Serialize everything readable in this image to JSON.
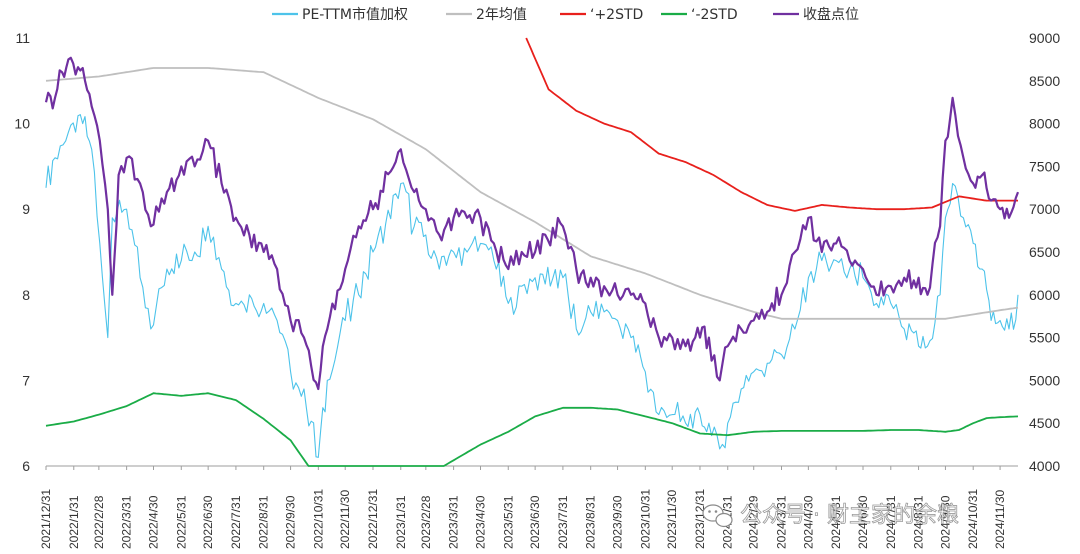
{
  "chart_data": {
    "type": "line",
    "legend_position": "top",
    "grid": false,
    "left_axis": {
      "ylim": [
        6,
        11
      ],
      "ticks": [
        "6",
        "7",
        "8",
        "9",
        "10",
        "11"
      ]
    },
    "right_axis": {
      "ylim": [
        4000,
        9000
      ],
      "ticks": [
        "4000",
        "4500",
        "5000",
        "5500",
        "6000",
        "6500",
        "7000",
        "7500",
        "8000",
        "8500",
        "9000"
      ]
    },
    "x_ticks": [
      "2021/12/31",
      "2022/1/31",
      "2022/2/28",
      "2022/3/31",
      "2022/4/30",
      "2022/5/31",
      "2022/6/30",
      "2022/7/31",
      "2022/8/31",
      "2022/9/30",
      "2022/10/31",
      "2022/11/30",
      "2022/12/31",
      "2023/1/31",
      "2023/2/28",
      "2023/3/31",
      "2023/4/30",
      "2023/5/31",
      "2023/6/30",
      "2023/7/31",
      "2023/8/31",
      "2023/9/30",
      "2023/10/31",
      "2023/11/30",
      "2023/12/31",
      "2024/1/31",
      "2024/2/29",
      "2024/3/31",
      "2024/4/30",
      "2024/5/31",
      "2024/6/30",
      "2024/7/31",
      "2024/8/31",
      "2024/9/30",
      "2024/10/31",
      "2024/11/30"
    ],
    "series": [
      {
        "name": "PE-TTM市值加权",
        "axis": "left",
        "color": "#4dc3ea",
        "points": [
          [
            "2021/12/31",
            9.25
          ],
          [
            "2022/1/10",
            9.6
          ],
          [
            "2022/1/25",
            9.9
          ],
          [
            "2022/2/10",
            10.0
          ],
          [
            "2022/2/20",
            9.7
          ],
          [
            "2022/3/1",
            8.6
          ],
          [
            "2022/3/10",
            7.5
          ],
          [
            "2022/3/15",
            8.9
          ],
          [
            "2022/3/31",
            9.0
          ],
          [
            "2022/4/15",
            8.2
          ],
          [
            "2022/4/27",
            7.6
          ],
          [
            "2022/5/15",
            8.3
          ],
          [
            "2022/5/31",
            8.4
          ],
          [
            "2022/6/15",
            8.5
          ],
          [
            "2022/6/30",
            8.8
          ],
          [
            "2022/7/15",
            8.3
          ],
          [
            "2022/7/31",
            7.9
          ],
          [
            "2022/8/15",
            8.0
          ],
          [
            "2022/8/31",
            7.9
          ],
          [
            "2022/9/15",
            7.7
          ],
          [
            "2022/9/30",
            7.1
          ],
          [
            "2022/10/15",
            6.9
          ],
          [
            "2022/10/31",
            6.1
          ],
          [
            "2022/11/10",
            7.0
          ],
          [
            "2022/11/30",
            7.7
          ],
          [
            "2022/12/15",
            8.0
          ],
          [
            "2022/12/31",
            8.5
          ],
          [
            "2023/1/31",
            9.3
          ],
          [
            "2023/2/15",
            8.8
          ],
          [
            "2023/2/28",
            8.7
          ],
          [
            "2023/3/15",
            8.3
          ],
          [
            "2023/3/31",
            8.5
          ],
          [
            "2023/4/15",
            8.5
          ],
          [
            "2023/4/30",
            8.6
          ],
          [
            "2023/5/15",
            8.4
          ],
          [
            "2023/5/31",
            7.9
          ],
          [
            "2023/6/15",
            8.1
          ],
          [
            "2023/6/30",
            8.2
          ],
          [
            "2023/7/31",
            8.2
          ],
          [
            "2023/8/15",
            7.6
          ],
          [
            "2023/8/31",
            7.8
          ],
          [
            "2023/9/15",
            7.8
          ],
          [
            "2023/9/30",
            7.7
          ],
          [
            "2023/10/15",
            7.5
          ],
          [
            "2023/10/31",
            7.1
          ],
          [
            "2023/11/15",
            6.6
          ],
          [
            "2023/11/30",
            6.6
          ],
          [
            "2023/12/15",
            6.5
          ],
          [
            "2023/12/31",
            6.6
          ],
          [
            "2024/1/10",
            6.5
          ],
          [
            "2024/1/22",
            6.2
          ],
          [
            "2024/1/31",
            6.5
          ],
          [
            "2024/2/15",
            6.9
          ],
          [
            "2024/2/29",
            7.1
          ],
          [
            "2024/3/15",
            7.2
          ],
          [
            "2024/3/31",
            7.3
          ],
          [
            "2024/4/15",
            7.6
          ],
          [
            "2024/4/30",
            8.2
          ],
          [
            "2024/5/15",
            8.4
          ],
          [
            "2024/5/31",
            8.4
          ],
          [
            "2024/6/15",
            8.3
          ],
          [
            "2024/6/30",
            8.2
          ],
          [
            "2024/7/15",
            7.9
          ],
          [
            "2024/7/31",
            7.9
          ],
          [
            "2024/8/15",
            7.6
          ],
          [
            "2024/8/31",
            7.4
          ],
          [
            "2024/9/10",
            7.4
          ],
          [
            "2024/9/24",
            8.0
          ],
          [
            "2024/9/30",
            8.9
          ],
          [
            "2024/10/8",
            9.3
          ],
          [
            "2024/10/20",
            8.9
          ],
          [
            "2024/10/31",
            8.6
          ],
          [
            "2024/11/10",
            8.3
          ],
          [
            "2024/11/20",
            7.7
          ],
          [
            "2024/11/30",
            7.7
          ],
          [
            "2024/12/10",
            7.6
          ],
          [
            "2024/12/20",
            8.0
          ]
        ]
      },
      {
        "name": "2年均值",
        "axis": "left",
        "color": "#bfbfbf",
        "points": [
          [
            "2021/12/31",
            10.5
          ],
          [
            "2022/2/28",
            10.55
          ],
          [
            "2022/4/30",
            10.65
          ],
          [
            "2022/6/30",
            10.65
          ],
          [
            "2022/8/31",
            10.6
          ],
          [
            "2022/10/31",
            10.3
          ],
          [
            "2022/12/31",
            10.05
          ],
          [
            "2023/2/28",
            9.7
          ],
          [
            "2023/4/30",
            9.2
          ],
          [
            "2023/6/30",
            8.85
          ],
          [
            "2023/8/31",
            8.45
          ],
          [
            "2023/10/31",
            8.25
          ],
          [
            "2023/12/31",
            8.0
          ],
          [
            "2024/2/29",
            7.8
          ],
          [
            "2024/3/31",
            7.72
          ],
          [
            "2024/5/31",
            7.72
          ],
          [
            "2024/7/31",
            7.72
          ],
          [
            "2024/9/30",
            7.72
          ],
          [
            "2024/11/30",
            7.82
          ],
          [
            "2024/12/20",
            7.85
          ]
        ]
      },
      {
        "name": "‘+2STD",
        "axis": "left",
        "color": "#e8201c",
        "points": [
          [
            "2023/6/20",
            11.0
          ],
          [
            "2023/7/15",
            10.4
          ],
          [
            "2023/8/15",
            10.15
          ],
          [
            "2023/9/15",
            10.0
          ],
          [
            "2023/10/15",
            9.9
          ],
          [
            "2023/11/15",
            9.65
          ],
          [
            "2023/12/15",
            9.55
          ],
          [
            "2024/1/15",
            9.4
          ],
          [
            "2024/2/15",
            9.2
          ],
          [
            "2024/3/15",
            9.05
          ],
          [
            "2024/4/15",
            8.98
          ],
          [
            "2024/5/15",
            9.05
          ],
          [
            "2024/6/15",
            9.02
          ],
          [
            "2024/7/15",
            9.0
          ],
          [
            "2024/8/15",
            9.0
          ],
          [
            "2024/9/15",
            9.02
          ],
          [
            "2024/10/15",
            9.15
          ],
          [
            "2024/11/15",
            9.1
          ],
          [
            "2024/12/20",
            9.1
          ]
        ]
      },
      {
        "name": "‘-2STD",
        "axis": "left",
        "color": "#1aac47",
        "points": [
          [
            "2021/12/31",
            6.47
          ],
          [
            "2022/1/31",
            6.52
          ],
          [
            "2022/2/28",
            6.6
          ],
          [
            "2022/3/31",
            6.7
          ],
          [
            "2022/4/30",
            6.85
          ],
          [
            "2022/5/31",
            6.82
          ],
          [
            "2022/6/30",
            6.85
          ],
          [
            "2022/7/31",
            6.77
          ],
          [
            "2022/8/31",
            6.55
          ],
          [
            "2022/9/30",
            6.3
          ],
          [
            "2022/10/20",
            6.0
          ],
          [
            "2023/3/20",
            6.0
          ],
          [
            "2023/4/30",
            6.25
          ],
          [
            "2023/5/31",
            6.4
          ],
          [
            "2023/6/30",
            6.58
          ],
          [
            "2023/7/31",
            6.68
          ],
          [
            "2023/8/31",
            6.68
          ],
          [
            "2023/9/30",
            6.66
          ],
          [
            "2023/10/31",
            6.58
          ],
          [
            "2023/11/30",
            6.5
          ],
          [
            "2023/12/31",
            6.38
          ],
          [
            "2024/1/31",
            6.36
          ],
          [
            "2024/2/29",
            6.4
          ],
          [
            "2024/3/31",
            6.41
          ],
          [
            "2024/4/30",
            6.41
          ],
          [
            "2024/5/31",
            6.41
          ],
          [
            "2024/6/30",
            6.41
          ],
          [
            "2024/7/31",
            6.42
          ],
          [
            "2024/8/31",
            6.42
          ],
          [
            "2024/9/30",
            6.4
          ],
          [
            "2024/10/15",
            6.42
          ],
          [
            "2024/10/31",
            6.5
          ],
          [
            "2024/11/15",
            6.56
          ],
          [
            "2024/11/30",
            6.57
          ],
          [
            "2024/12/20",
            6.58
          ]
        ]
      },
      {
        "name": "收盘点位",
        "axis": "right",
        "color": "#7030a0",
        "points": [
          [
            "2021/12/31",
            8250
          ],
          [
            "2022/1/10",
            8300
          ],
          [
            "2022/1/18",
            8600
          ],
          [
            "2022/1/25",
            8750
          ],
          [
            "2022/2/10",
            8650
          ],
          [
            "2022/2/20",
            8200
          ],
          [
            "2022/3/1",
            7800
          ],
          [
            "2022/3/10",
            7000
          ],
          [
            "2022/3/15",
            6000
          ],
          [
            "2022/3/22",
            7400
          ],
          [
            "2022/3/31",
            7600
          ],
          [
            "2022/4/15",
            7300
          ],
          [
            "2022/4/27",
            6800
          ],
          [
            "2022/5/15",
            7200
          ],
          [
            "2022/5/31",
            7500
          ],
          [
            "2022/6/15",
            7500
          ],
          [
            "2022/6/30",
            7800
          ],
          [
            "2022/7/15",
            7300
          ],
          [
            "2022/7/31",
            6900
          ],
          [
            "2022/8/15",
            6700
          ],
          [
            "2022/8/31",
            6500
          ],
          [
            "2022/9/15",
            6300
          ],
          [
            "2022/9/30",
            5700
          ],
          [
            "2022/10/15",
            5500
          ],
          [
            "2022/10/31",
            4900
          ],
          [
            "2022/11/10",
            5600
          ],
          [
            "2022/11/30",
            6300
          ],
          [
            "2022/12/15",
            6800
          ],
          [
            "2022/12/31",
            7000
          ],
          [
            "2023/1/31",
            7700
          ],
          [
            "2023/2/15",
            7200
          ],
          [
            "2023/2/28",
            7000
          ],
          [
            "2023/3/15",
            6700
          ],
          [
            "2023/3/31",
            6900
          ],
          [
            "2023/4/15",
            6900
          ],
          [
            "2023/4/30",
            6900
          ],
          [
            "2023/5/15",
            6600
          ],
          [
            "2023/5/31",
            6300
          ],
          [
            "2023/6/15",
            6500
          ],
          [
            "2023/6/30",
            6500
          ],
          [
            "2023/7/31",
            6800
          ],
          [
            "2023/8/15",
            6300
          ],
          [
            "2023/8/31",
            6200
          ],
          [
            "2023/9/15",
            6100
          ],
          [
            "2023/9/30",
            6000
          ],
          [
            "2023/10/15",
            6000
          ],
          [
            "2023/10/31",
            5900
          ],
          [
            "2023/11/15",
            5500
          ],
          [
            "2023/11/30",
            5500
          ],
          [
            "2023/12/15",
            5400
          ],
          [
            "2023/12/31",
            5500
          ],
          [
            "2024/1/10",
            5500
          ],
          [
            "2024/1/22",
            5000
          ],
          [
            "2024/1/31",
            5400
          ],
          [
            "2024/2/15",
            5600
          ],
          [
            "2024/2/29",
            5700
          ],
          [
            "2024/3/15",
            5800
          ],
          [
            "2024/3/31",
            6000
          ],
          [
            "2024/4/15",
            6500
          ],
          [
            "2024/4/30",
            6900
          ],
          [
            "2024/5/15",
            6500
          ],
          [
            "2024/5/31",
            6600
          ],
          [
            "2024/6/15",
            6400
          ],
          [
            "2024/6/30",
            6300
          ],
          [
            "2024/7/15",
            6000
          ],
          [
            "2024/7/31",
            6100
          ],
          [
            "2024/8/15",
            6200
          ],
          [
            "2024/8/31",
            6200
          ],
          [
            "2024/9/10",
            6000
          ],
          [
            "2024/9/24",
            6800
          ],
          [
            "2024/9/30",
            7800
          ],
          [
            "2024/10/8",
            8300
          ],
          [
            "2024/10/20",
            7600
          ],
          [
            "2024/10/31",
            7300
          ],
          [
            "2024/11/10",
            7400
          ],
          [
            "2024/11/20",
            7100
          ],
          [
            "2024/11/30",
            7000
          ],
          [
            "2024/12/10",
            6900
          ],
          [
            "2024/12/20",
            7200
          ]
        ]
      }
    ]
  },
  "watermark": {
    "text": "公众号 · 财主家的余粮",
    "icon": "wechat-icon"
  }
}
